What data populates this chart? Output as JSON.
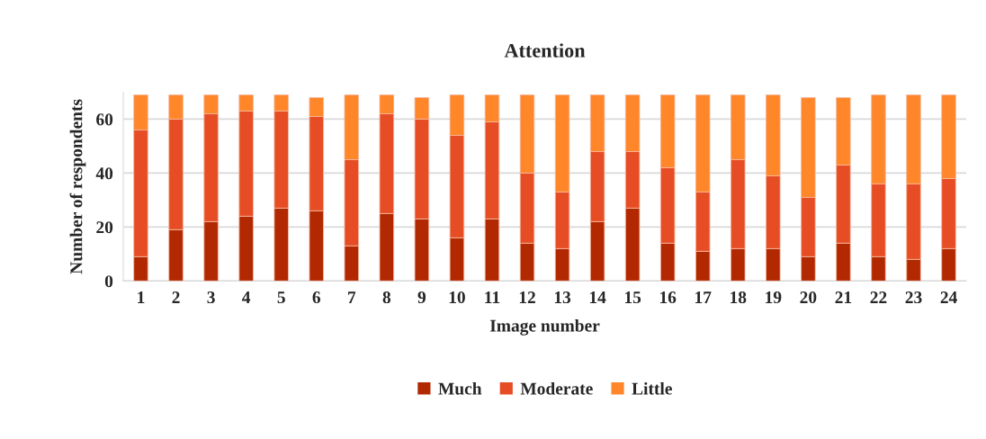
{
  "chart_data": {
    "type": "bar",
    "title": "Attention",
    "xlabel": "Image number",
    "ylabel": "Number of respondents",
    "categories": [
      "1",
      "2",
      "3",
      "4",
      "5",
      "6",
      "7",
      "8",
      "9",
      "10",
      "11",
      "12",
      "13",
      "14",
      "15",
      "16",
      "17",
      "18",
      "19",
      "20",
      "21",
      "22",
      "23",
      "24"
    ],
    "stacked": true,
    "ylim": [
      0,
      70
    ],
    "yticks": [
      0,
      20,
      40,
      60
    ],
    "grid": "y",
    "legend": "bottom",
    "series": [
      {
        "name": "Much",
        "color": "#b22800",
        "values": [
          9,
          19,
          22,
          24,
          27,
          26,
          13,
          25,
          23,
          16,
          23,
          14,
          12,
          22,
          27,
          14,
          11,
          12,
          12,
          9,
          14,
          9,
          8,
          12
        ]
      },
      {
        "name": "Moderate",
        "color": "#e64d24",
        "values": [
          47,
          41,
          40,
          39,
          36,
          35,
          32,
          37,
          37,
          38,
          36,
          26,
          21,
          26,
          21,
          28,
          22,
          33,
          27,
          22,
          29,
          27,
          28,
          26
        ]
      },
      {
        "name": "Little",
        "color": "#ff8629",
        "values": [
          13,
          9,
          7,
          6,
          6,
          7,
          24,
          7,
          8,
          15,
          10,
          29,
          36,
          21,
          21,
          27,
          36,
          24,
          30,
          37,
          25,
          33,
          33,
          31
        ]
      }
    ]
  }
}
